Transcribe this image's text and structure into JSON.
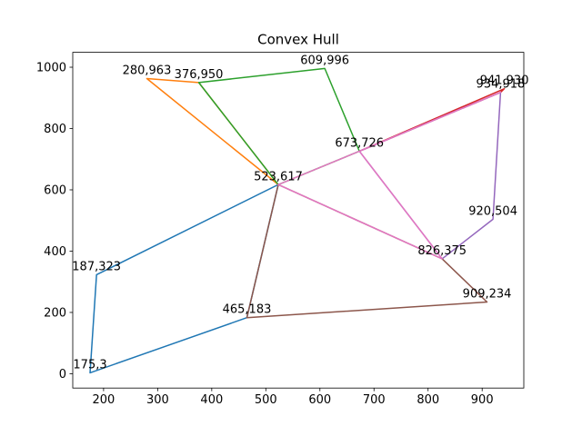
{
  "chart_data": {
    "type": "line",
    "title": "Convex Hull",
    "xlabel": "",
    "ylabel": "",
    "xlim": [
      143,
      977
    ],
    "ylim": [
      -46.65,
      1048.65
    ],
    "xticks": [
      200,
      300,
      400,
      500,
      600,
      700,
      800,
      900
    ],
    "yticks": [
      0,
      200,
      400,
      600,
      800,
      1000
    ],
    "grid": false,
    "series": [
      {
        "color": "#1f77b4",
        "points": [
          [
            523,
            617
          ],
          [
            187,
            323
          ],
          [
            175,
            3
          ],
          [
            465,
            183
          ],
          [
            523,
            617
          ]
        ]
      },
      {
        "color": "#ff7f0e",
        "points": [
          [
            523,
            617
          ],
          [
            280,
            963
          ],
          [
            376,
            950
          ],
          [
            523,
            617
          ]
        ]
      },
      {
        "color": "#2ca02c",
        "points": [
          [
            523,
            617
          ],
          [
            376,
            950
          ],
          [
            609,
            996
          ],
          [
            673,
            726
          ],
          [
            523,
            617
          ]
        ]
      },
      {
        "color": "#d62728",
        "points": [
          [
            673,
            726
          ],
          [
            941,
            930
          ],
          [
            934,
            918
          ],
          [
            673,
            726
          ]
        ]
      },
      {
        "color": "#9467bd",
        "points": [
          [
            673,
            726
          ],
          [
            934,
            918
          ],
          [
            920,
            504
          ],
          [
            826,
            375
          ],
          [
            673,
            726
          ]
        ]
      },
      {
        "color": "#8c564b",
        "points": [
          [
            523,
            617
          ],
          [
            465,
            183
          ],
          [
            909,
            234
          ],
          [
            826,
            375
          ],
          [
            523,
            617
          ]
        ]
      },
      {
        "color": "#e377c2",
        "points": [
          [
            523,
            617
          ],
          [
            673,
            726
          ],
          [
            934,
            918
          ],
          [
            673,
            726
          ],
          [
            826,
            375
          ],
          [
            523,
            617
          ]
        ]
      }
    ],
    "point_labels": [
      {
        "text": "175,3",
        "x": 175,
        "y": 3
      },
      {
        "text": "187,323",
        "x": 187,
        "y": 323
      },
      {
        "text": "280,963",
        "x": 280,
        "y": 963
      },
      {
        "text": "376,950",
        "x": 376,
        "y": 950
      },
      {
        "text": "465,183",
        "x": 465,
        "y": 183
      },
      {
        "text": "523,617",
        "x": 523,
        "y": 617
      },
      {
        "text": "609,996",
        "x": 609,
        "y": 996
      },
      {
        "text": "673,726",
        "x": 673,
        "y": 726
      },
      {
        "text": "826,375",
        "x": 826,
        "y": 375
      },
      {
        "text": "909,234",
        "x": 909,
        "y": 234
      },
      {
        "text": "920,504",
        "x": 920,
        "y": 504
      },
      {
        "text": "934,918",
        "x": 934,
        "y": 918
      },
      {
        "text": "941,930",
        "x": 941,
        "y": 930
      }
    ]
  }
}
